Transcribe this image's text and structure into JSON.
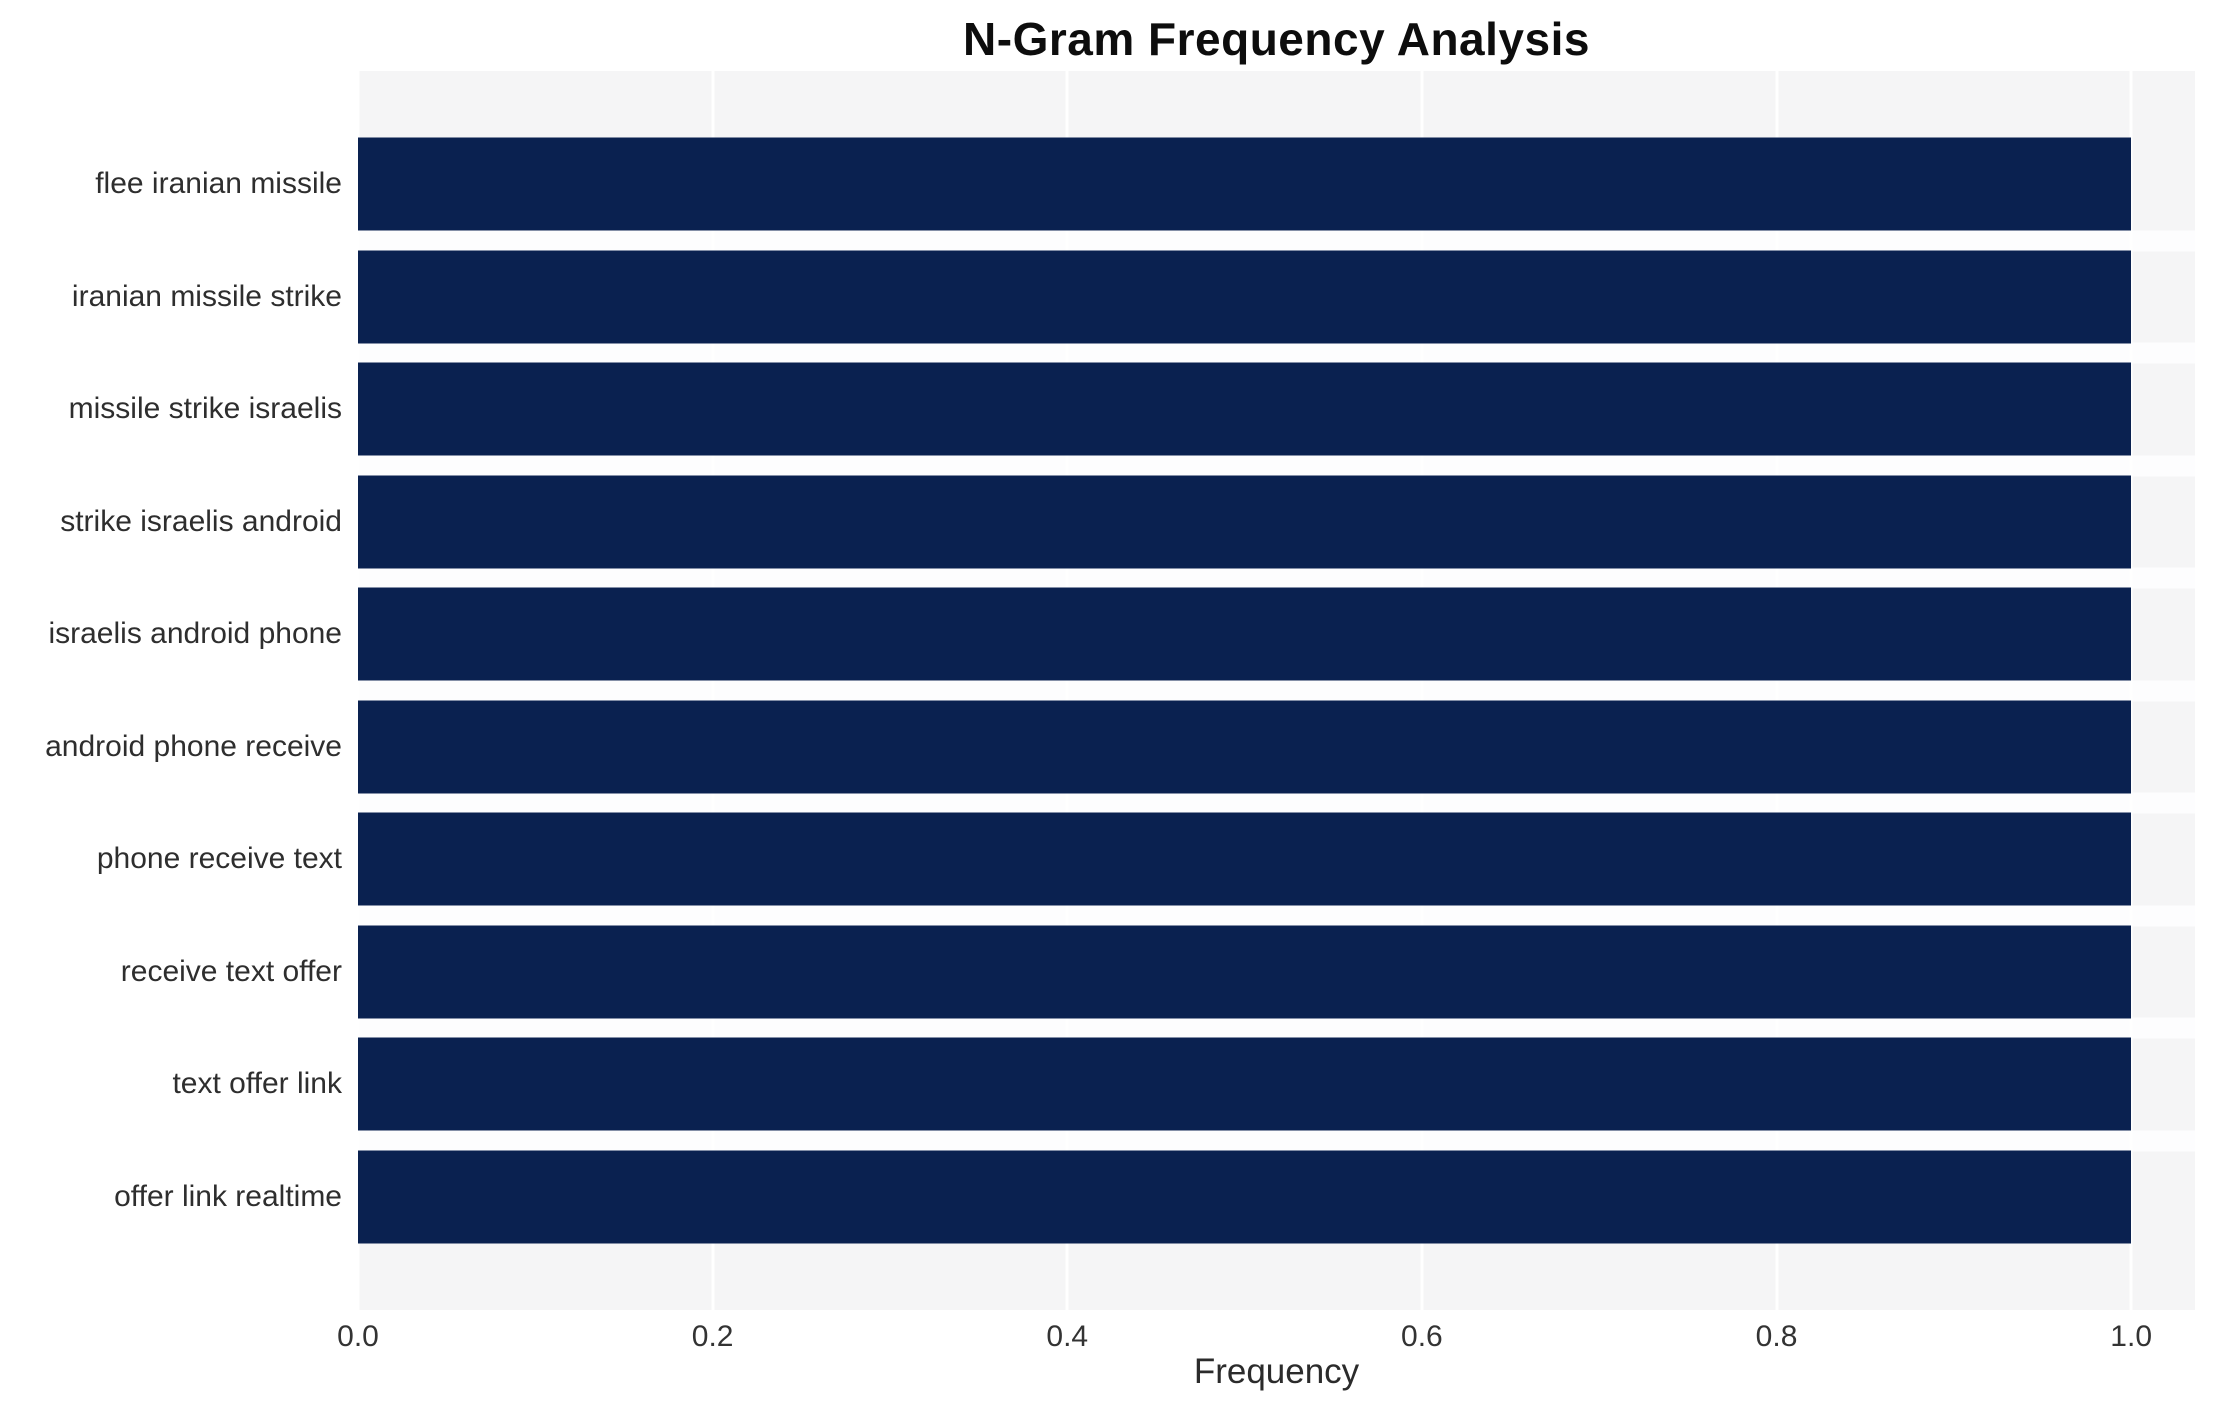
{
  "chart_data": {
    "type": "bar",
    "orientation": "horizontal",
    "title": "N-Gram Frequency Analysis",
    "categories": [
      "flee iranian missile",
      "iranian missile strike",
      "missile strike israelis",
      "strike israelis android",
      "israelis android phone",
      "android phone receive",
      "phone receive text",
      "receive text offer",
      "text offer link",
      "offer link realtime"
    ],
    "values": [
      1.0,
      1.0,
      1.0,
      1.0,
      1.0,
      1.0,
      1.0,
      1.0,
      1.0,
      1.0
    ],
    "xlabel": "Frequency",
    "ylabel": "",
    "xlim": [
      0,
      1.036
    ],
    "x_ticks": [
      0.0,
      0.2,
      0.4,
      0.6,
      0.8,
      1.0
    ],
    "x_tick_labels": [
      "0.0",
      "0.2",
      "0.4",
      "0.6",
      "0.8",
      "1.0"
    ],
    "grid": true,
    "legend": false,
    "bar_color": "#0a2150",
    "plot_bg": "#f5f5f6",
    "gridline_color": "#ffffff",
    "title_color": "#0d0d0d"
  }
}
